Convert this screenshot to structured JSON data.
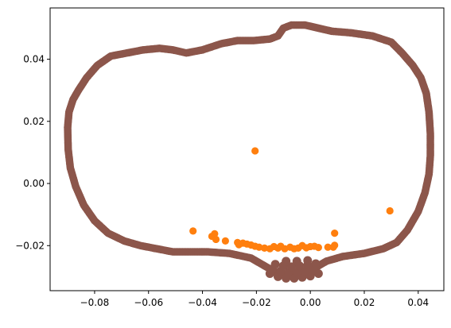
{
  "chart_data": {
    "type": "scatter",
    "title": "",
    "xlabel": "",
    "ylabel": "",
    "xlim": [
      -0.0965,
      0.0495
    ],
    "ylim": [
      -0.0345,
      0.0565
    ],
    "x_ticks": [
      {
        "value": -0.08,
        "label": "−0.08"
      },
      {
        "value": -0.06,
        "label": "−0.06"
      },
      {
        "value": -0.04,
        "label": "−0.04"
      },
      {
        "value": -0.02,
        "label": "−0.02"
      },
      {
        "value": 0.0,
        "label": "0.00"
      },
      {
        "value": 0.02,
        "label": "0.02"
      },
      {
        "value": 0.04,
        "label": "0.04"
      }
    ],
    "y_ticks": [
      {
        "value": -0.02,
        "label": "−0.02"
      },
      {
        "value": 0.0,
        "label": "0.00"
      },
      {
        "value": 0.02,
        "label": "0.02"
      },
      {
        "value": 0.04,
        "label": "0.04"
      }
    ],
    "grid": false,
    "legend": "none",
    "series": [
      {
        "color": "#ff7f0e",
        "points": [
          [
            -0.0205,
            0.0105
          ],
          [
            0.0295,
            -0.0088
          ],
          [
            -0.0435,
            -0.0153
          ],
          [
            -0.0365,
            -0.017
          ],
          [
            -0.0355,
            -0.0162
          ],
          [
            -0.035,
            -0.018
          ],
          [
            -0.0315,
            -0.0185
          ],
          [
            0.009,
            -0.016
          ],
          [
            -0.027,
            -0.019
          ],
          [
            -0.0265,
            -0.0197
          ],
          [
            -0.025,
            -0.0192
          ],
          [
            -0.0235,
            -0.0195
          ],
          [
            -0.022,
            -0.0198
          ],
          [
            -0.0205,
            -0.0202
          ],
          [
            -0.019,
            -0.0205
          ],
          [
            -0.017,
            -0.0208
          ],
          [
            -0.015,
            -0.021
          ],
          [
            -0.0135,
            -0.0203
          ],
          [
            -0.012,
            -0.0208
          ],
          [
            -0.011,
            -0.0202
          ],
          [
            -0.0095,
            -0.021
          ],
          [
            -0.0075,
            -0.0205
          ],
          [
            -0.006,
            -0.021
          ],
          [
            -0.0045,
            -0.0208
          ],
          [
            -0.003,
            -0.02
          ],
          [
            -0.0015,
            -0.0207
          ],
          [
            0.0,
            -0.0203
          ],
          [
            0.0015,
            -0.0202
          ],
          [
            0.003,
            -0.0206
          ],
          [
            0.0065,
            -0.0205
          ],
          [
            0.0085,
            -0.0205
          ],
          [
            0.009,
            -0.0199
          ]
        ]
      },
      {
        "color": "#8c564b",
        "outline": [
          [
            -0.09,
            0.018
          ],
          [
            -0.0895,
            0.023
          ],
          [
            -0.088,
            0.027
          ],
          [
            -0.086,
            0.03
          ],
          [
            -0.083,
            0.034
          ],
          [
            -0.079,
            0.038
          ],
          [
            -0.074,
            0.041
          ],
          [
            -0.068,
            0.042
          ],
          [
            -0.062,
            0.043
          ],
          [
            -0.056,
            0.0435
          ],
          [
            -0.051,
            0.043
          ],
          [
            -0.046,
            0.042
          ],
          [
            -0.04,
            0.043
          ],
          [
            -0.033,
            0.045
          ],
          [
            -0.027,
            0.046
          ],
          [
            -0.021,
            0.046
          ],
          [
            -0.015,
            0.0465
          ],
          [
            -0.012,
            0.0475
          ],
          [
            -0.01,
            0.05
          ],
          [
            -0.007,
            0.051
          ],
          [
            -0.002,
            0.051
          ],
          [
            0.003,
            0.05
          ],
          [
            0.008,
            0.049
          ],
          [
            0.015,
            0.0485
          ],
          [
            0.023,
            0.0475
          ],
          [
            0.03,
            0.0455
          ],
          [
            0.034,
            0.042
          ],
          [
            0.038,
            0.038
          ],
          [
            0.041,
            0.034
          ],
          [
            0.043,
            0.029
          ],
          [
            0.044,
            0.023
          ],
          [
            0.0445,
            0.016
          ],
          [
            0.0445,
            0.009
          ],
          [
            0.044,
            0.003
          ],
          [
            0.0425,
            -0.003
          ],
          [
            0.04,
            -0.009
          ],
          [
            0.036,
            -0.015
          ],
          [
            0.032,
            -0.019
          ],
          [
            0.027,
            -0.021
          ],
          [
            0.02,
            -0.0225
          ],
          [
            0.012,
            -0.0235
          ],
          [
            0.006,
            -0.025
          ],
          [
            0.002,
            -0.027
          ],
          [
            -0.003,
            -0.029
          ],
          [
            -0.008,
            -0.0295
          ],
          [
            -0.013,
            -0.0285
          ],
          [
            -0.018,
            -0.026
          ],
          [
            -0.022,
            -0.024
          ],
          [
            -0.03,
            -0.0225
          ],
          [
            -0.038,
            -0.022
          ],
          [
            -0.045,
            -0.022
          ],
          [
            -0.051,
            -0.022
          ],
          [
            -0.057,
            -0.021
          ],
          [
            -0.063,
            -0.02
          ],
          [
            -0.069,
            -0.0185
          ],
          [
            -0.075,
            -0.016
          ],
          [
            -0.08,
            -0.012
          ],
          [
            -0.084,
            -0.007
          ],
          [
            -0.087,
            -0.001
          ],
          [
            -0.089,
            0.005
          ],
          [
            -0.0898,
            0.011
          ],
          [
            -0.09,
            0.018
          ]
        ],
        "bottom_cluster": [
          [
            -0.015,
            -0.029
          ],
          [
            -0.012,
            -0.03
          ],
          [
            -0.009,
            -0.0305
          ],
          [
            -0.006,
            -0.0305
          ],
          [
            -0.003,
            -0.0302
          ],
          [
            0.0,
            -0.0298
          ],
          [
            0.003,
            -0.029
          ],
          [
            -0.014,
            -0.0275
          ],
          [
            -0.011,
            -0.0282
          ],
          [
            -0.008,
            -0.0285
          ],
          [
            -0.005,
            -0.0285
          ],
          [
            -0.002,
            -0.0282
          ],
          [
            0.001,
            -0.0278
          ],
          [
            -0.013,
            -0.026
          ],
          [
            -0.01,
            -0.0265
          ],
          [
            -0.007,
            -0.0268
          ],
          [
            -0.004,
            -0.0265
          ],
          [
            -0.001,
            -0.0262
          ],
          [
            0.002,
            -0.0258
          ],
          [
            -0.009,
            -0.025
          ],
          [
            -0.005,
            -0.025
          ],
          [
            -0.001,
            -0.0248
          ]
        ]
      }
    ]
  }
}
